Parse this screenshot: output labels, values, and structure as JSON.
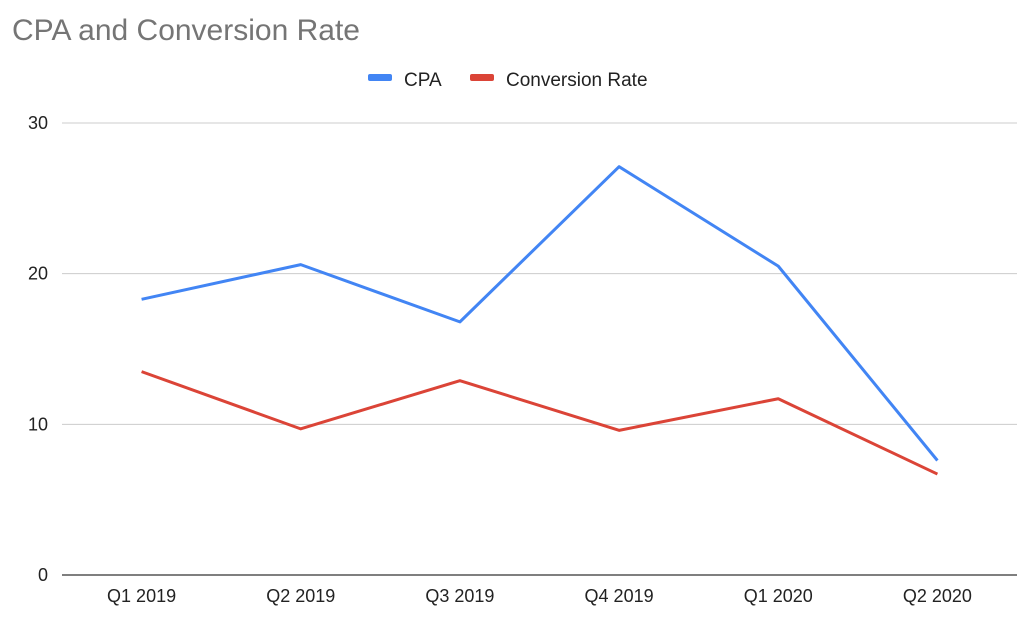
{
  "chart_data": {
    "type": "line",
    "title": "CPA and Conversion Rate",
    "xlabel": "",
    "ylabel": "",
    "categories": [
      "Q1 2019",
      "Q2 2019",
      "Q3 2019",
      "Q4 2019",
      "Q1 2020",
      "Q2 2020"
    ],
    "ylim": [
      0,
      30
    ],
    "yticks": [
      "0",
      "10",
      "20",
      "30"
    ],
    "grid": true,
    "legend_position": "top",
    "series": [
      {
        "name": "CPA",
        "color": "#4285f4",
        "values": [
          18.3,
          20.6,
          16.8,
          27.1,
          20.5,
          7.6
        ]
      },
      {
        "name": "Conversion Rate",
        "color": "#db4437",
        "values": [
          13.5,
          9.7,
          12.9,
          9.6,
          11.7,
          6.7
        ]
      }
    ]
  }
}
